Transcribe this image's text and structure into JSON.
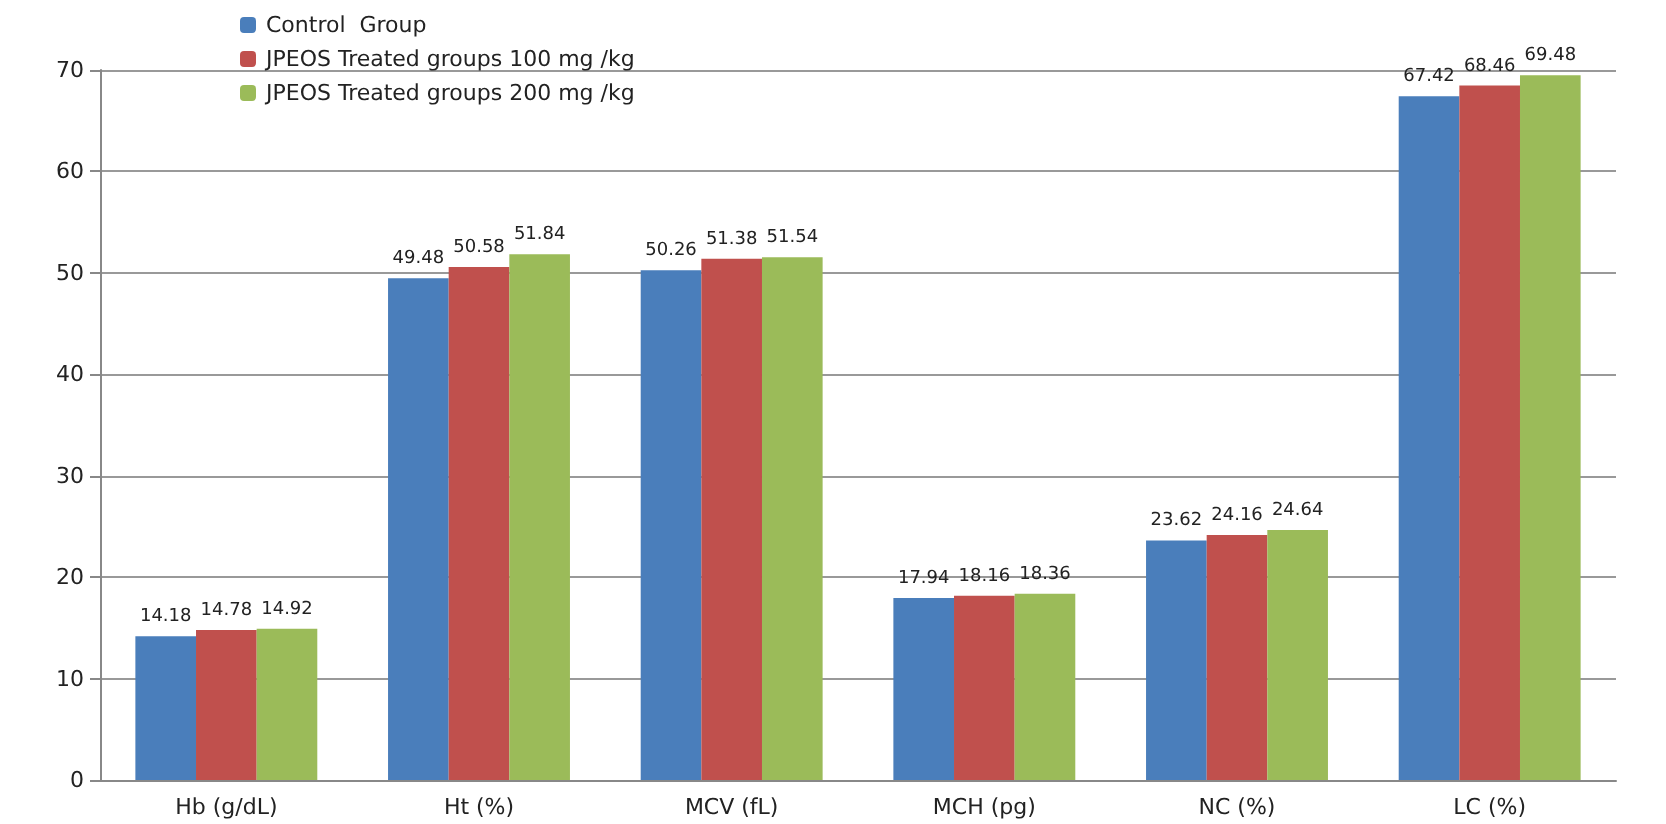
{
  "chart_data": {
    "type": "bar",
    "categories": [
      "Hb (g/dL)",
      "Ht (%)",
      "MCV (fL)",
      "MCH (pg)",
      "NC (%)",
      "LC (%)"
    ],
    "series": [
      {
        "name": "Control  Group",
        "color": "#4a7ebb",
        "values": [
          14.18,
          49.48,
          50.26,
          17.94,
          23.62,
          67.42
        ]
      },
      {
        "name": "JPEOS Treated groups 100 mg /kg",
        "color": "#c0504d",
        "values": [
          14.78,
          50.58,
          51.38,
          18.16,
          24.16,
          68.46
        ]
      },
      {
        "name": "JPEOS Treated groups 200 mg /kg",
        "color": "#9bbb59",
        "values": [
          14.92,
          51.84,
          51.54,
          18.36,
          24.64,
          69.48
        ]
      }
    ],
    "ylim": [
      0,
      70
    ],
    "yticks": [
      0,
      10,
      20,
      30,
      40,
      50,
      60,
      70
    ],
    "grid": "y",
    "legend": "top left",
    "data_labels": true
  }
}
